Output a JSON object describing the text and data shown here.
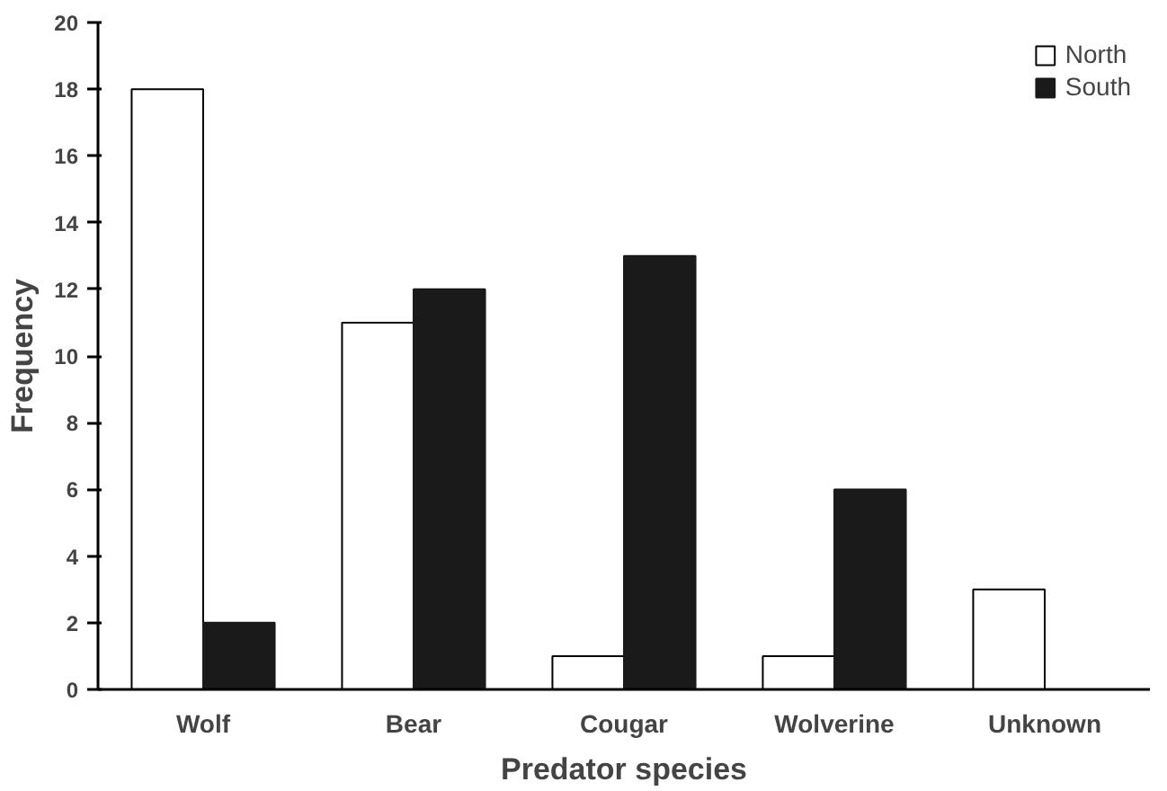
{
  "chart_data": {
    "type": "bar",
    "xlabel": "Predator species",
    "ylabel": "Frequency",
    "categories": [
      "Wolf",
      "Bear",
      "Cougar",
      "Wolverine",
      "Unknown"
    ],
    "series": [
      {
        "name": "North",
        "color": "#ffffff",
        "values": [
          18,
          11,
          1,
          1,
          3
        ]
      },
      {
        "name": "South",
        "color": "#1a1a1a",
        "values": [
          2,
          12,
          13,
          6,
          0
        ]
      }
    ],
    "ylim": [
      0,
      20
    ],
    "yticks": [
      0,
      2,
      4,
      6,
      8,
      10,
      12,
      14,
      16,
      18,
      20
    ],
    "grid": false,
    "legend": "top right"
  }
}
